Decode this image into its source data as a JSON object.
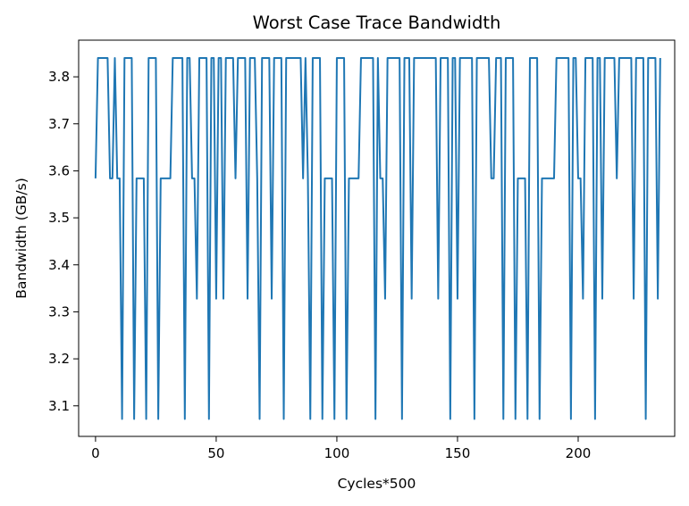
{
  "chart_data": {
    "type": "line",
    "title": "Worst Case Trace Bandwidth",
    "xlabel": "Cycles*500",
    "ylabel": "Bandwidth (GB/s)",
    "xlim": [
      -7,
      240
    ],
    "ylim": [
      3.035,
      3.878
    ],
    "xticks": [
      0,
      50,
      100,
      150,
      200
    ],
    "xtick_labels": [
      "0",
      "50",
      "100",
      "150",
      "200"
    ],
    "yticks": [
      3.1,
      3.2,
      3.3,
      3.4,
      3.5,
      3.6,
      3.7,
      3.8
    ],
    "ytick_labels": [
      "3.1",
      "3.2",
      "3.3",
      "3.4",
      "3.5",
      "3.6",
      "3.7",
      "3.8"
    ],
    "grid": false,
    "color": "#1f77b4",
    "series": [
      {
        "values": [
          3.584,
          3.84,
          3.84,
          3.84,
          3.84,
          3.84,
          3.584,
          3.584,
          3.84,
          3.584,
          3.584,
          3.072,
          3.84,
          3.84,
          3.84,
          3.84,
          3.072,
          3.584,
          3.584,
          3.584,
          3.584,
          3.072,
          3.84,
          3.84,
          3.84,
          3.84,
          3.072,
          3.584,
          3.584,
          3.584,
          3.584,
          3.584,
          3.84,
          3.84,
          3.84,
          3.84,
          3.84,
          3.072,
          3.84,
          3.84,
          3.584,
          3.584,
          3.328,
          3.84,
          3.84,
          3.84,
          3.84,
          3.072,
          3.84,
          3.84,
          3.328,
          3.84,
          3.84,
          3.328,
          3.84,
          3.84,
          3.84,
          3.84,
          3.584,
          3.84,
          3.84,
          3.84,
          3.84,
          3.328,
          3.84,
          3.84,
          3.84,
          3.584,
          3.072,
          3.84,
          3.84,
          3.84,
          3.84,
          3.328,
          3.84,
          3.84,
          3.84,
          3.84,
          3.072,
          3.84,
          3.84,
          3.84,
          3.84,
          3.84,
          3.84,
          3.84,
          3.584,
          3.84,
          3.584,
          3.072,
          3.84,
          3.84,
          3.84,
          3.84,
          3.072,
          3.584,
          3.584,
          3.584,
          3.584,
          3.072,
          3.84,
          3.84,
          3.84,
          3.84,
          3.072,
          3.584,
          3.584,
          3.584,
          3.584,
          3.584,
          3.84,
          3.84,
          3.84,
          3.84,
          3.84,
          3.84,
          3.072,
          3.84,
          3.584,
          3.584,
          3.328,
          3.84,
          3.84,
          3.84,
          3.84,
          3.84,
          3.84,
          3.072,
          3.84,
          3.84,
          3.84,
          3.328,
          3.84,
          3.84,
          3.84,
          3.84,
          3.84,
          3.84,
          3.84,
          3.84,
          3.84,
          3.84,
          3.328,
          3.84,
          3.84,
          3.84,
          3.84,
          3.072,
          3.84,
          3.84,
          3.328,
          3.84,
          3.84,
          3.84,
          3.84,
          3.84,
          3.84,
          3.072,
          3.84,
          3.84,
          3.84,
          3.84,
          3.84,
          3.84,
          3.584,
          3.584,
          3.84,
          3.84,
          3.84,
          3.072,
          3.84,
          3.84,
          3.84,
          3.84,
          3.072,
          3.584,
          3.584,
          3.584,
          3.584,
          3.072,
          3.84,
          3.84,
          3.84,
          3.84,
          3.072,
          3.584,
          3.584,
          3.584,
          3.584,
          3.584,
          3.584,
          3.84,
          3.84,
          3.84,
          3.84,
          3.84,
          3.84,
          3.072,
          3.84,
          3.84,
          3.584,
          3.584,
          3.328,
          3.84,
          3.84,
          3.84,
          3.84,
          3.072,
          3.84,
          3.84,
          3.328,
          3.84,
          3.84,
          3.84,
          3.84,
          3.84,
          3.584,
          3.84,
          3.84,
          3.84,
          3.84,
          3.84,
          3.84,
          3.328,
          3.84,
          3.84,
          3.84,
          3.84,
          3.072,
          3.84,
          3.84,
          3.84,
          3.84,
          3.328,
          3.84
        ]
      }
    ]
  }
}
